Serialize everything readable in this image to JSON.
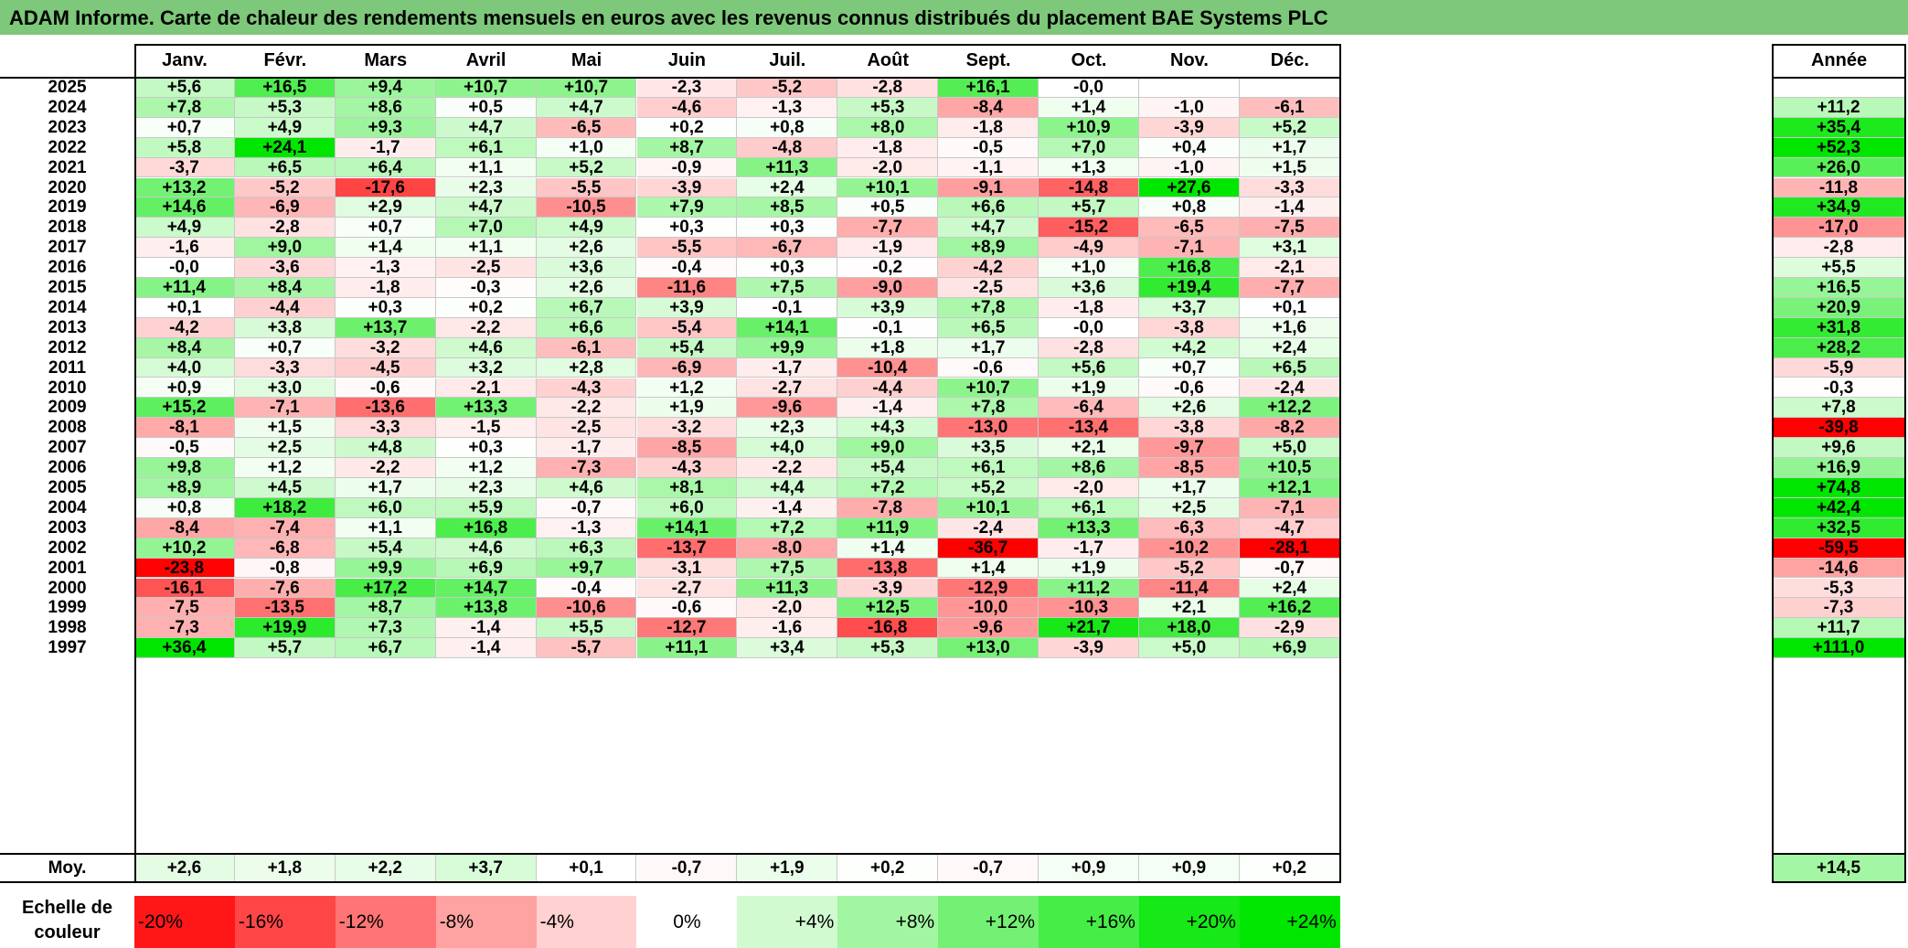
{
  "title": "ADAM Informe. Carte de chaleur des rendements mensuels en euros avec les revenus connus distribués du placement BAE Systems PLC",
  "chart_data": {
    "type": "heatmap",
    "title": "ADAM Informe. Carte de chaleur des rendements mensuels en euros avec les revenus connus distribués du placement BAE Systems PLC",
    "columns": [
      "Janv.",
      "Févr.",
      "Mars",
      "Avril",
      "Mai",
      "Juin",
      "Juil.",
      "Août",
      "Sept.",
      "Oct.",
      "Nov.",
      "Déc."
    ],
    "annual_header": "Année",
    "rows": [
      {
        "year": "2025",
        "values": [
          "+5,6",
          "+16,5",
          "+9,4",
          "+10,7",
          "+10,7",
          "-2,3",
          "-5,2",
          "-2,8",
          "+16,1",
          "-0,0",
          "",
          ""
        ],
        "annual": ""
      },
      {
        "year": "2024",
        "values": [
          "+7,8",
          "+5,3",
          "+8,6",
          "+0,5",
          "+4,7",
          "-4,6",
          "-1,3",
          "+5,3",
          "-8,4",
          "+1,4",
          "-1,0",
          "-6,1"
        ],
        "annual": "+11,2"
      },
      {
        "year": "2023",
        "values": [
          "+0,7",
          "+4,9",
          "+9,3",
          "+4,7",
          "-6,5",
          "+0,2",
          "+0,8",
          "+8,0",
          "-1,8",
          "+10,9",
          "-3,9",
          "+5,2"
        ],
        "annual": "+35,4"
      },
      {
        "year": "2022",
        "values": [
          "+5,8",
          "+24,1",
          "-1,7",
          "+6,1",
          "+1,0",
          "+8,7",
          "-4,8",
          "-1,8",
          "-0,5",
          "+7,0",
          "+0,4",
          "+1,7"
        ],
        "annual": "+52,3"
      },
      {
        "year": "2021",
        "values": [
          "-3,7",
          "+6,5",
          "+6,4",
          "+1,1",
          "+5,2",
          "-0,9",
          "+11,3",
          "-2,0",
          "-1,1",
          "+1,3",
          "-1,0",
          "+1,5"
        ],
        "annual": "+26,0"
      },
      {
        "year": "2020",
        "values": [
          "+13,2",
          "-5,2",
          "-17,6",
          "+2,3",
          "-5,5",
          "-3,9",
          "+2,4",
          "+10,1",
          "-9,1",
          "-14,8",
          "+27,6",
          "-3,3"
        ],
        "annual": "-11,8"
      },
      {
        "year": "2019",
        "values": [
          "+14,6",
          "-6,9",
          "+2,9",
          "+4,7",
          "-10,5",
          "+7,9",
          "+8,5",
          "+0,5",
          "+6,6",
          "+5,7",
          "+0,8",
          "-1,4"
        ],
        "annual": "+34,9"
      },
      {
        "year": "2018",
        "values": [
          "+4,9",
          "-2,8",
          "+0,7",
          "+7,0",
          "+4,9",
          "+0,3",
          "+0,3",
          "-7,7",
          "+4,7",
          "-15,2",
          "-6,5",
          "-7,5"
        ],
        "annual": "-17,0"
      },
      {
        "year": "2017",
        "values": [
          "-1,6",
          "+9,0",
          "+1,4",
          "+1,1",
          "+2,6",
          "-5,5",
          "-6,7",
          "-1,9",
          "+8,9",
          "-4,9",
          "-7,1",
          "+3,1"
        ],
        "annual": "-2,8"
      },
      {
        "year": "2016",
        "values": [
          "-0,0",
          "-3,6",
          "-1,3",
          "-2,5",
          "+3,6",
          "-0,4",
          "+0,3",
          "-0,2",
          "-4,2",
          "+1,0",
          "+16,8",
          "-2,1"
        ],
        "annual": "+5,5"
      },
      {
        "year": "2015",
        "values": [
          "+11,4",
          "+8,4",
          "-1,8",
          "-0,3",
          "+2,6",
          "-11,6",
          "+7,5",
          "-9,0",
          "-2,5",
          "+3,6",
          "+19,4",
          "-7,7"
        ],
        "annual": "+16,5"
      },
      {
        "year": "2014",
        "values": [
          "+0,1",
          "-4,4",
          "+0,3",
          "+0,2",
          "+6,7",
          "+3,9",
          "-0,1",
          "+3,9",
          "+7,8",
          "-1,8",
          "+3,7",
          "+0,1"
        ],
        "annual": "+20,9"
      },
      {
        "year": "2013",
        "values": [
          "-4,2",
          "+3,8",
          "+13,7",
          "-2,2",
          "+6,6",
          "-5,4",
          "+14,1",
          "-0,1",
          "+6,5",
          "-0,0",
          "-3,8",
          "+1,6"
        ],
        "annual": "+31,8"
      },
      {
        "year": "2012",
        "values": [
          "+8,4",
          "+0,7",
          "-3,2",
          "+4,6",
          "-6,1",
          "+5,4",
          "+9,9",
          "+1,8",
          "+1,7",
          "-2,8",
          "+4,2",
          "+2,4"
        ],
        "annual": "+28,2"
      },
      {
        "year": "2011",
        "values": [
          "+4,0",
          "-3,3",
          "-4,5",
          "+3,2",
          "+2,8",
          "-6,9",
          "-1,7",
          "-10,4",
          "-0,6",
          "+5,6",
          "+0,7",
          "+6,5"
        ],
        "annual": "-5,9"
      },
      {
        "year": "2010",
        "values": [
          "+0,9",
          "+3,0",
          "-0,6",
          "-2,1",
          "-4,3",
          "+1,2",
          "-2,7",
          "-4,4",
          "+10,7",
          "+1,9",
          "-0,6",
          "-2,4"
        ],
        "annual": "-0,3"
      },
      {
        "year": "2009",
        "values": [
          "+15,2",
          "-7,1",
          "-13,6",
          "+13,3",
          "-2,2",
          "+1,9",
          "-9,6",
          "-1,4",
          "+7,8",
          "-6,4",
          "+2,6",
          "+12,2"
        ],
        "annual": "+7,8"
      },
      {
        "year": "2008",
        "values": [
          "-8,1",
          "+1,5",
          "-3,3",
          "-1,5",
          "-2,5",
          "-3,2",
          "+2,3",
          "+4,3",
          "-13,0",
          "-13,4",
          "-3,8",
          "-8,2"
        ],
        "annual": "-39,8"
      },
      {
        "year": "2007",
        "values": [
          "-0,5",
          "+2,5",
          "+4,8",
          "+0,3",
          "-1,7",
          "-8,5",
          "+4,0",
          "+9,0",
          "+3,5",
          "+2,1",
          "-9,7",
          "+5,0"
        ],
        "annual": "+9,6"
      },
      {
        "year": "2006",
        "values": [
          "+9,8",
          "+1,2",
          "-2,2",
          "+1,2",
          "-7,3",
          "-4,3",
          "-2,2",
          "+5,4",
          "+6,1",
          "+8,6",
          "-8,5",
          "+10,5"
        ],
        "annual": "+16,9"
      },
      {
        "year": "2005",
        "values": [
          "+8,9",
          "+4,5",
          "+1,7",
          "+2,3",
          "+4,6",
          "+8,1",
          "+4,4",
          "+7,2",
          "+5,2",
          "-2,0",
          "+1,7",
          "+12,1"
        ],
        "annual": "+74,8"
      },
      {
        "year": "2004",
        "values": [
          "+0,8",
          "+18,2",
          "+6,0",
          "+5,9",
          "-0,7",
          "+6,0",
          "-1,4",
          "-7,8",
          "+10,1",
          "+6,1",
          "+2,5",
          "-7,1"
        ],
        "annual": "+42,4"
      },
      {
        "year": "2003",
        "values": [
          "-8,4",
          "-7,4",
          "+1,1",
          "+16,8",
          "-1,3",
          "+14,1",
          "+7,2",
          "+11,9",
          "-2,4",
          "+13,3",
          "-6,3",
          "-4,7"
        ],
        "annual": "+32,5"
      },
      {
        "year": "2002",
        "values": [
          "+10,2",
          "-6,8",
          "+5,4",
          "+4,6",
          "+6,3",
          "-13,7",
          "-8,0",
          "+1,4",
          "-36,7",
          "-1,7",
          "-10,2",
          "-28,1"
        ],
        "annual": "-59,5"
      },
      {
        "year": "2001",
        "values": [
          "-23,8",
          "-0,8",
          "+9,9",
          "+6,9",
          "+9,7",
          "-3,1",
          "+7,5",
          "-13,8",
          "+1,4",
          "+1,9",
          "-5,2",
          "-0,7"
        ],
        "annual": "-14,6"
      },
      {
        "year": "2000",
        "values": [
          "-16,1",
          "-7,6",
          "+17,2",
          "+14,7",
          "-0,4",
          "-2,7",
          "+11,3",
          "-3,9",
          "-12,9",
          "+11,2",
          "-11,4",
          "+2,4"
        ],
        "annual": "-5,3"
      },
      {
        "year": "1999",
        "values": [
          "-7,5",
          "-13,5",
          "+8,7",
          "+13,8",
          "-10,6",
          "-0,6",
          "-2,0",
          "+12,5",
          "-10,0",
          "-10,3",
          "+2,1",
          "+16,2"
        ],
        "annual": "-7,3"
      },
      {
        "year": "1998",
        "values": [
          "-7,3",
          "+19,9",
          "+7,3",
          "-1,4",
          "+5,5",
          "-12,7",
          "-1,6",
          "-16,8",
          "-9,6",
          "+21,7",
          "+18,0",
          "-2,9"
        ],
        "annual": "+11,7"
      },
      {
        "year": "1997",
        "values": [
          "+36,4",
          "+5,7",
          "+6,7",
          "-1,4",
          "-5,7",
          "+11,1",
          "+3,4",
          "+5,3",
          "+13,0",
          "-3,9",
          "+5,0",
          "+6,9"
        ],
        "annual": "+111,0"
      }
    ],
    "average": {
      "label": "Moy.",
      "values": [
        "+2,6",
        "+1,8",
        "+2,2",
        "+3,7",
        "+0,1",
        "-0,7",
        "+1,9",
        "+0,2",
        "-0,7",
        "+0,9",
        "+0,9",
        "+0,2"
      ],
      "annual": "+14,5"
    },
    "color_scale": {
      "label": "Echelle de couleur",
      "stops": [
        "-20%",
        "-16%",
        "-12%",
        "-8%",
        "-4%",
        "0%",
        "+4%",
        "+8%",
        "+12%",
        "+16%",
        "+20%",
        "+24%"
      ],
      "negative_color": "#ff0000",
      "neutral_color": "#ffffff",
      "positive_color": "#00e600"
    }
  }
}
